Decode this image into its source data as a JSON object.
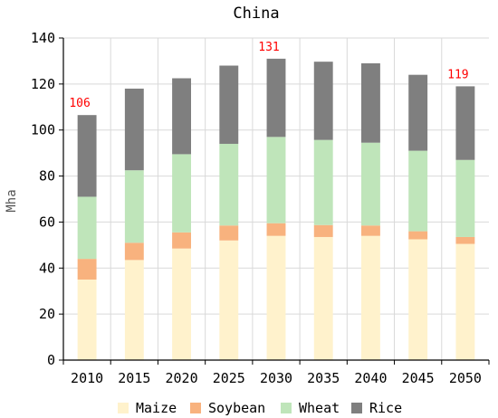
{
  "chart_data": {
    "type": "bar",
    "stacked": true,
    "title": "China",
    "xlabel": "",
    "ylabel": "Mha",
    "ylim": [
      0,
      140
    ],
    "yticks": [
      "0",
      "20",
      "40",
      "60",
      "80",
      "100",
      "120",
      "140"
    ],
    "grid": true,
    "legend_position": "bottom",
    "categories": [
      "2010",
      "2015",
      "2020",
      "2025",
      "2030",
      "2035",
      "2040",
      "2045",
      "2050"
    ],
    "series": [
      {
        "name": "Maize",
        "color": "#FFF2CC",
        "values": [
          35,
          43.5,
          48.5,
          52,
          54,
          53.5,
          54,
          52.5,
          50.5
        ]
      },
      {
        "name": "Soybean",
        "color": "#F8B27E",
        "values": [
          9,
          7.5,
          7,
          6.5,
          5.5,
          5.2,
          4.5,
          3.5,
          3
        ]
      },
      {
        "name": "Wheat",
        "color": "#BFE5BA",
        "values": [
          27,
          31.5,
          34,
          35.5,
          37.5,
          37,
          36,
          35,
          33.5
        ]
      },
      {
        "name": "Rice",
        "color": "#7F7F7F",
        "values": [
          35.5,
          35.5,
          33,
          34,
          34,
          34,
          34.5,
          33,
          32
        ]
      }
    ],
    "annotations": [
      {
        "category": "2010",
        "text": "106"
      },
      {
        "category": "2030",
        "text": "131"
      },
      {
        "category": "2050",
        "text": "119"
      }
    ],
    "annotation_color": "#FF0000"
  }
}
